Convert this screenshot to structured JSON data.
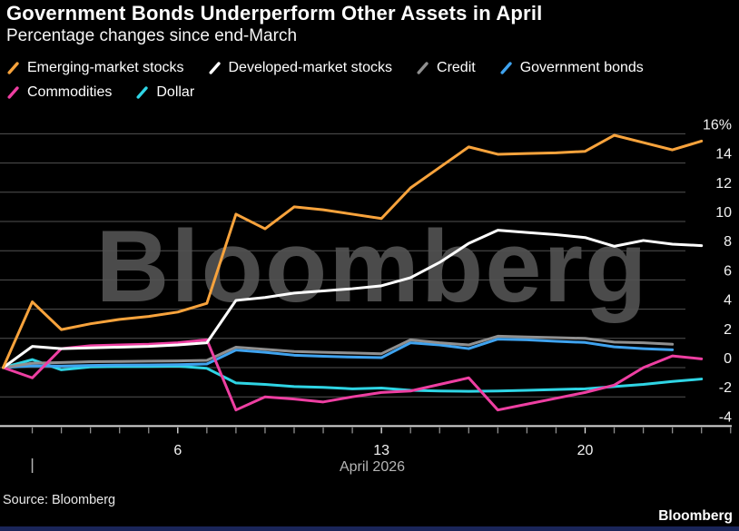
{
  "header": {
    "title": "Government Bonds Underperform Other Assets in April",
    "subtitle": "Percentage changes since end-March"
  },
  "legend": [
    {
      "label": "Emerging-market stocks",
      "color": "#f8a33c"
    },
    {
      "label": "Developed-market stocks",
      "color": "#ffffff"
    },
    {
      "label": "Credit",
      "color": "#909090"
    },
    {
      "label": "Government bonds",
      "color": "#3fa3ef"
    },
    {
      "label": "Commodities",
      "color": "#ee3fa2"
    },
    {
      "label": "Dollar",
      "color": "#2fd5e5"
    }
  ],
  "watermark_text": "Bloomberg",
  "footer": {
    "source": "Source: Bloomberg",
    "brand": "Bloomberg"
  },
  "colors": {
    "background": "#000000",
    "grid": "#525252",
    "axis": "#d8d8d8",
    "tick": "#8f8f8f",
    "tick_labeled": "#e8e8e8",
    "axis_label": "#f2f2f2",
    "month_label": "#b5b5b5",
    "watermark": "#4b4b4b",
    "bottom_bar": "#1a2559"
  },
  "chart_data": {
    "type": "line",
    "title": "Government Bonds Underperform Other Assets in April",
    "subtitle": "Percentage changes since end-March",
    "xlabel": "April 2026",
    "ylabel": "Percentage change since end-March (%)",
    "x_description": "Day 0 = March 31 2026; days 1-24 = April 1-24 2026",
    "ylim": [
      -4,
      16
    ],
    "grid": "horizontal",
    "legend_position": "top",
    "y_ticks": [
      16,
      14,
      12,
      10,
      8,
      6,
      4,
      2,
      0,
      -2,
      -4
    ],
    "y_tick_labels": [
      "16%",
      "14",
      "12",
      "10",
      "8",
      "6",
      "4",
      "2",
      "0",
      "-2",
      "-4"
    ],
    "x_tick_days": [
      1,
      2,
      3,
      4,
      5,
      6,
      7,
      8,
      9,
      10,
      11,
      12,
      13,
      14,
      15,
      16,
      17,
      18,
      19,
      20,
      21,
      22,
      23,
      24,
      25
    ],
    "x_labeled_ticks": [
      6,
      13,
      20
    ],
    "month_marker_day": 1,
    "series": [
      {
        "name": "Emerging-market stocks",
        "color": "#f8a33c",
        "x": [
          0,
          1,
          2,
          3,
          4,
          5,
          6,
          7,
          8,
          9,
          10,
          11,
          12,
          13,
          14,
          15,
          16,
          17,
          18,
          19,
          20,
          21,
          22,
          23,
          24
        ],
        "values": [
          0,
          4.5,
          2.6,
          3.0,
          3.3,
          3.5,
          3.8,
          4.4,
          10.5,
          9.5,
          11.0,
          10.8,
          10.5,
          10.2,
          12.3,
          13.7,
          15.1,
          14.6,
          14.65,
          14.7,
          14.8,
          15.9,
          15.4,
          14.9,
          15.5
        ]
      },
      {
        "name": "Developed-market stocks",
        "color": "#ffffff",
        "x": [
          0,
          1,
          2,
          3,
          4,
          5,
          6,
          7,
          8,
          9,
          10,
          11,
          12,
          13,
          14,
          15,
          16,
          17,
          18,
          19,
          20,
          21,
          22,
          23,
          24
        ],
        "values": [
          0,
          1.45,
          1.3,
          1.35,
          1.4,
          1.45,
          1.55,
          1.7,
          4.6,
          4.8,
          5.1,
          5.25,
          5.4,
          5.6,
          6.15,
          7.2,
          8.5,
          9.4,
          9.25,
          9.1,
          8.9,
          8.3,
          8.7,
          8.45,
          8.35
        ]
      },
      {
        "name": "Credit",
        "color": "#909090",
        "x": [
          0,
          1,
          2,
          3,
          4,
          5,
          6,
          7,
          8,
          9,
          10,
          11,
          12,
          13,
          14,
          15,
          16,
          17,
          18,
          19,
          20,
          21,
          22,
          23
        ],
        "values": [
          0,
          0.3,
          0.35,
          0.4,
          0.42,
          0.44,
          0.46,
          0.5,
          1.4,
          1.25,
          1.1,
          1.05,
          1.0,
          0.95,
          1.9,
          1.7,
          1.55,
          2.15,
          2.1,
          2.05,
          2.0,
          1.75,
          1.7,
          1.6
        ]
      },
      {
        "name": "Government bonds",
        "color": "#3fa3ef",
        "x": [
          0,
          1,
          2,
          3,
          4,
          5,
          6,
          7,
          8,
          9,
          10,
          11,
          12,
          13,
          14,
          15,
          16,
          17,
          18,
          19,
          20,
          21,
          22,
          23
        ],
        "values": [
          0,
          0.12,
          0.1,
          0.15,
          0.17,
          0.18,
          0.2,
          0.25,
          1.2,
          1.05,
          0.85,
          0.78,
          0.72,
          0.68,
          1.7,
          1.55,
          1.3,
          1.95,
          1.9,
          1.8,
          1.72,
          1.42,
          1.3,
          1.22
        ]
      },
      {
        "name": "Commodities",
        "color": "#ee3fa2",
        "x": [
          0,
          1,
          2,
          3,
          4,
          5,
          6,
          7,
          8,
          9,
          10,
          11,
          12,
          13,
          14,
          15,
          16,
          17,
          18,
          19,
          20,
          21,
          22,
          23,
          24
        ],
        "values": [
          0,
          -0.7,
          1.3,
          1.5,
          1.55,
          1.6,
          1.7,
          1.9,
          -2.9,
          -2.0,
          -2.15,
          -2.35,
          -2.0,
          -1.7,
          -1.6,
          -1.15,
          -0.7,
          -2.9,
          -2.5,
          -2.1,
          -1.7,
          -1.2,
          0.0,
          0.8,
          0.6
        ]
      },
      {
        "name": "Dollar",
        "color": "#2fd5e5",
        "x": [
          0,
          1,
          2,
          3,
          4,
          5,
          6,
          7,
          8,
          9,
          10,
          11,
          12,
          13,
          14,
          15,
          16,
          17,
          18,
          19,
          20,
          21,
          22,
          23,
          24
        ],
        "values": [
          0,
          0.55,
          -0.15,
          0.05,
          0.07,
          0.08,
          0.1,
          -0.05,
          -1.05,
          -1.15,
          -1.3,
          -1.35,
          -1.45,
          -1.4,
          -1.55,
          -1.6,
          -1.62,
          -1.6,
          -1.55,
          -1.5,
          -1.45,
          -1.3,
          -1.15,
          -0.95,
          -0.78
        ]
      }
    ]
  }
}
